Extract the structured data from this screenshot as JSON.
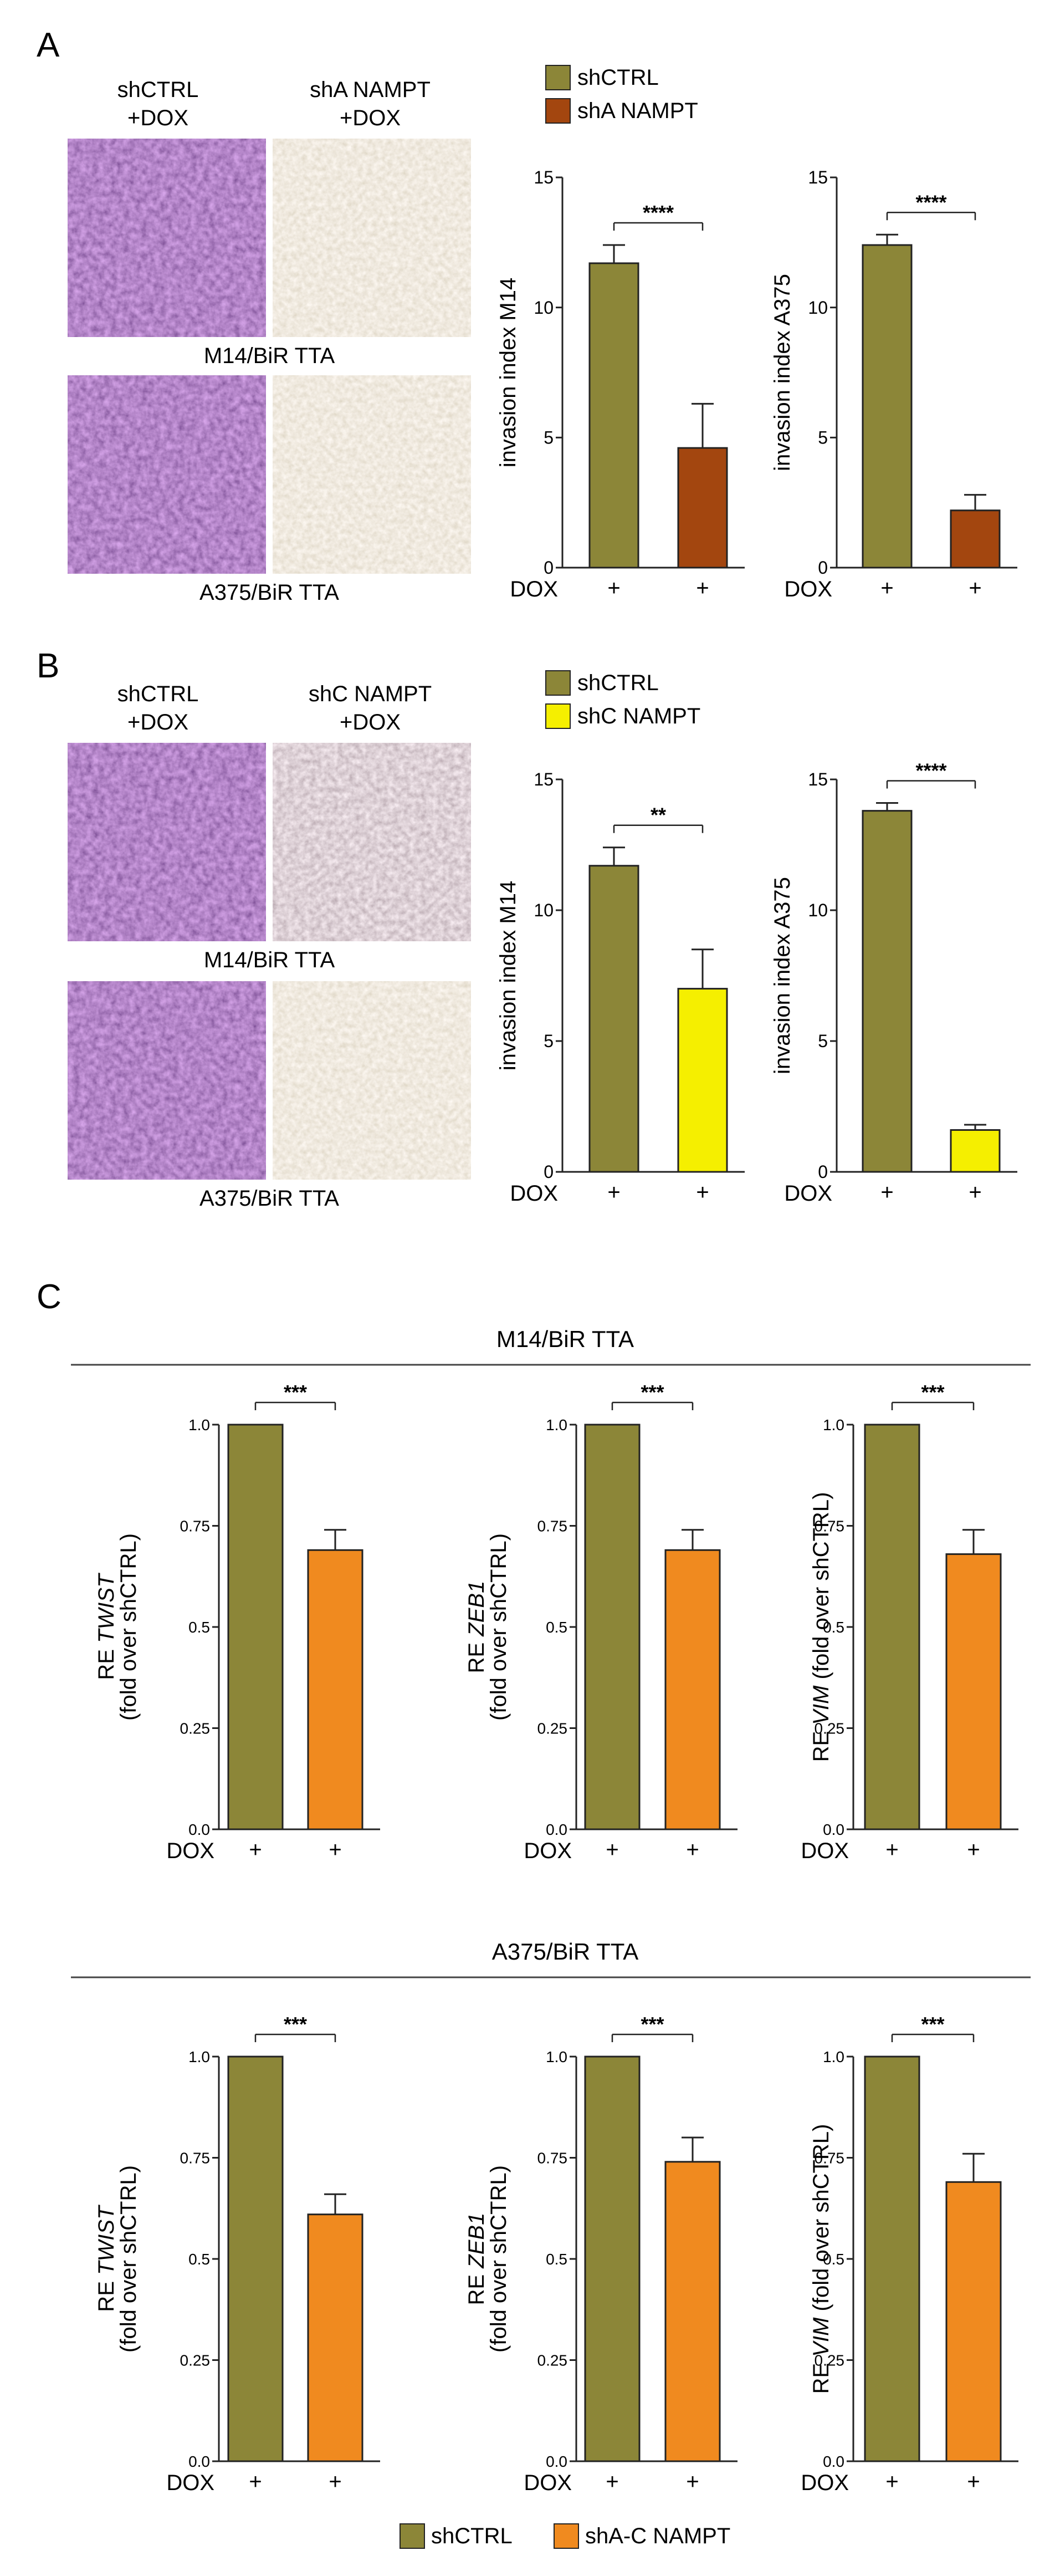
{
  "colors": {
    "shctrl": "#8c8638",
    "sha": "#a3460f",
    "shc": "#f5ef00",
    "shac": "#f08a1f",
    "axis": "#222222"
  },
  "panel_a": {
    "letter": "A",
    "col1": [
      "shCTRL",
      "+DOX"
    ],
    "col2": [
      "shA NAMPT",
      "+DOX"
    ],
    "row1": "M14/BiR TTA",
    "row2": "A375/BiR TTA",
    "legend": [
      "shCTRL",
      "shA NAMPT"
    ]
  },
  "panel_b": {
    "letter": "B",
    "col1": [
      "shCTRL",
      "+DOX"
    ],
    "col2": [
      "shC NAMPT",
      "+DOX"
    ],
    "row1": "M14/BiR TTA",
    "row2": "A375/BiR TTA",
    "legend": [
      "shCTRL",
      "shC NAMPT"
    ]
  },
  "panel_c": {
    "letter": "C",
    "group1_title": "M14/BiR TTA",
    "group2_title": "A375/BiR TTA",
    "legend": [
      "shCTRL",
      "shA-C NAMPT"
    ]
  },
  "chart_data": [
    {
      "id": "a1",
      "type": "bar",
      "title": "",
      "ylabel": "invasion index M14",
      "ylim": [
        0,
        15
      ],
      "yticks": [
        0,
        5,
        10,
        15
      ],
      "yticklabels": [
        "0",
        "5",
        "10",
        "15"
      ],
      "xlabel": "DOX",
      "categories": [
        "+",
        "+"
      ],
      "values": [
        11.7,
        4.6
      ],
      "errors": [
        0.7,
        1.7
      ],
      "significance": "****",
      "series_names": [
        "shCTRL",
        "shA NAMPT"
      ]
    },
    {
      "id": "a2",
      "type": "bar",
      "title": "",
      "ylabel": "invasion index A375",
      "ylim": [
        0,
        15
      ],
      "yticks": [
        0,
        5,
        10,
        15
      ],
      "yticklabels": [
        "0",
        "5",
        "10",
        "15"
      ],
      "xlabel": "DOX",
      "categories": [
        "+",
        "+"
      ],
      "values": [
        12.4,
        2.2
      ],
      "errors": [
        0.4,
        0.6
      ],
      "significance": "****",
      "series_names": [
        "shCTRL",
        "shA NAMPT"
      ]
    },
    {
      "id": "b1",
      "type": "bar",
      "title": "",
      "ylabel": "invasion index M14",
      "ylim": [
        0,
        15
      ],
      "yticks": [
        0,
        5,
        10,
        15
      ],
      "yticklabels": [
        "0",
        "5",
        "10",
        "15"
      ],
      "xlabel": "DOX",
      "categories": [
        "+",
        "+"
      ],
      "values": [
        11.7,
        7.0
      ],
      "errors": [
        0.7,
        1.5
      ],
      "significance": "**",
      "series_names": [
        "shCTRL",
        "shC NAMPT"
      ]
    },
    {
      "id": "b2",
      "type": "bar",
      "title": "",
      "ylabel": "invasion index A375",
      "ylim": [
        0,
        15
      ],
      "yticks": [
        0,
        5,
        10,
        15
      ],
      "yticklabels": [
        "0",
        "5",
        "10",
        "15"
      ],
      "xlabel": "DOX",
      "categories": [
        "+",
        "+"
      ],
      "values": [
        13.8,
        1.6
      ],
      "errors": [
        0.3,
        0.2
      ],
      "significance": "****",
      "series_names": [
        "shCTRL",
        "shC NAMPT"
      ]
    },
    {
      "id": "c1",
      "type": "bar",
      "title": "",
      "ylabel_prefix": "RE ",
      "ylabel_gene": "TWIST",
      "ylabel_line2": "(fold over shCTRL)",
      "ylim": [
        0,
        1
      ],
      "yticks": [
        0,
        0.25,
        0.5,
        0.75,
        1
      ],
      "yticklabels": [
        "0.0",
        "0.25",
        "0.5",
        "0.75",
        "1.0"
      ],
      "xlabel": "DOX",
      "categories": [
        "+",
        "+"
      ],
      "values": [
        1.0,
        0.69
      ],
      "errors": [
        0,
        0.05
      ],
      "significance": "***",
      "series_names": [
        "shCTRL",
        "shA-C NAMPT"
      ]
    },
    {
      "id": "c2",
      "type": "bar",
      "title": "",
      "ylabel_prefix": "RE ",
      "ylabel_gene": "ZEB1",
      "ylabel_line2": "(fold over shCTRL)",
      "ylim": [
        0,
        1
      ],
      "yticks": [
        0,
        0.25,
        0.5,
        0.75,
        1
      ],
      "yticklabels": [
        "0.0",
        "0.25",
        "0.5",
        "0.75",
        "1.0"
      ],
      "xlabel": "DOX",
      "categories": [
        "+",
        "+"
      ],
      "values": [
        1.0,
        0.69
      ],
      "errors": [
        0,
        0.05
      ],
      "significance": "***",
      "series_names": [
        "shCTRL",
        "shA-C NAMPT"
      ]
    },
    {
      "id": "c3",
      "type": "bar",
      "title": "",
      "ylabel_prefix": "RE ",
      "ylabel_gene": "VIM",
      "ylabel_line2": "(fold over shCTRL)",
      "ylim": [
        0,
        1
      ],
      "yticks": [
        0,
        0.25,
        0.5,
        0.75,
        1
      ],
      "yticklabels": [
        "0.0",
        "0.25",
        "0.5",
        "0.75",
        "1.0"
      ],
      "xlabel": "DOX",
      "categories": [
        "+",
        "+"
      ],
      "values": [
        1.0,
        0.68
      ],
      "errors": [
        0,
        0.06
      ],
      "significance": "***",
      "series_names": [
        "shCTRL",
        "shA-C NAMPT"
      ]
    },
    {
      "id": "c4",
      "type": "bar",
      "title": "",
      "ylabel_prefix": "RE ",
      "ylabel_gene": "TWIST",
      "ylabel_line2": "(fold over shCTRL)",
      "ylim": [
        0,
        1
      ],
      "yticks": [
        0,
        0.25,
        0.5,
        0.75,
        1
      ],
      "yticklabels": [
        "0.0",
        "0.25",
        "0.5",
        "0.75",
        "1.0"
      ],
      "xlabel": "DOX",
      "categories": [
        "+",
        "+"
      ],
      "values": [
        1.0,
        0.61
      ],
      "errors": [
        0,
        0.05
      ],
      "significance": "***",
      "series_names": [
        "shCTRL",
        "shA-C NAMPT"
      ]
    },
    {
      "id": "c5",
      "type": "bar",
      "title": "",
      "ylabel_prefix": "RE ",
      "ylabel_gene": "ZEB1",
      "ylabel_line2": "(fold over shCTRL)",
      "ylim": [
        0,
        1
      ],
      "yticks": [
        0,
        0.25,
        0.5,
        0.75,
        1
      ],
      "yticklabels": [
        "0.0",
        "0.25",
        "0.5",
        "0.75",
        "1.0"
      ],
      "xlabel": "DOX",
      "categories": [
        "+",
        "+"
      ],
      "values": [
        1.0,
        0.74
      ],
      "errors": [
        0,
        0.06
      ],
      "significance": "***",
      "series_names": [
        "shCTRL",
        "shA-C NAMPT"
      ]
    },
    {
      "id": "c6",
      "type": "bar",
      "title": "",
      "ylabel_prefix": "RE ",
      "ylabel_gene": "VIM",
      "ylabel_line2": "(fold over shCTRL)",
      "ylim": [
        0,
        1
      ],
      "yticks": [
        0,
        0.25,
        0.5,
        0.75,
        1
      ],
      "yticklabels": [
        "0.0",
        "0.25",
        "0.5",
        "0.75",
        "1.0"
      ],
      "xlabel": "DOX",
      "categories": [
        "+",
        "+"
      ],
      "values": [
        1.0,
        0.69
      ],
      "errors": [
        0,
        0.07
      ],
      "significance": "***",
      "series_names": [
        "shCTRL",
        "shA-C NAMPT"
      ]
    }
  ]
}
